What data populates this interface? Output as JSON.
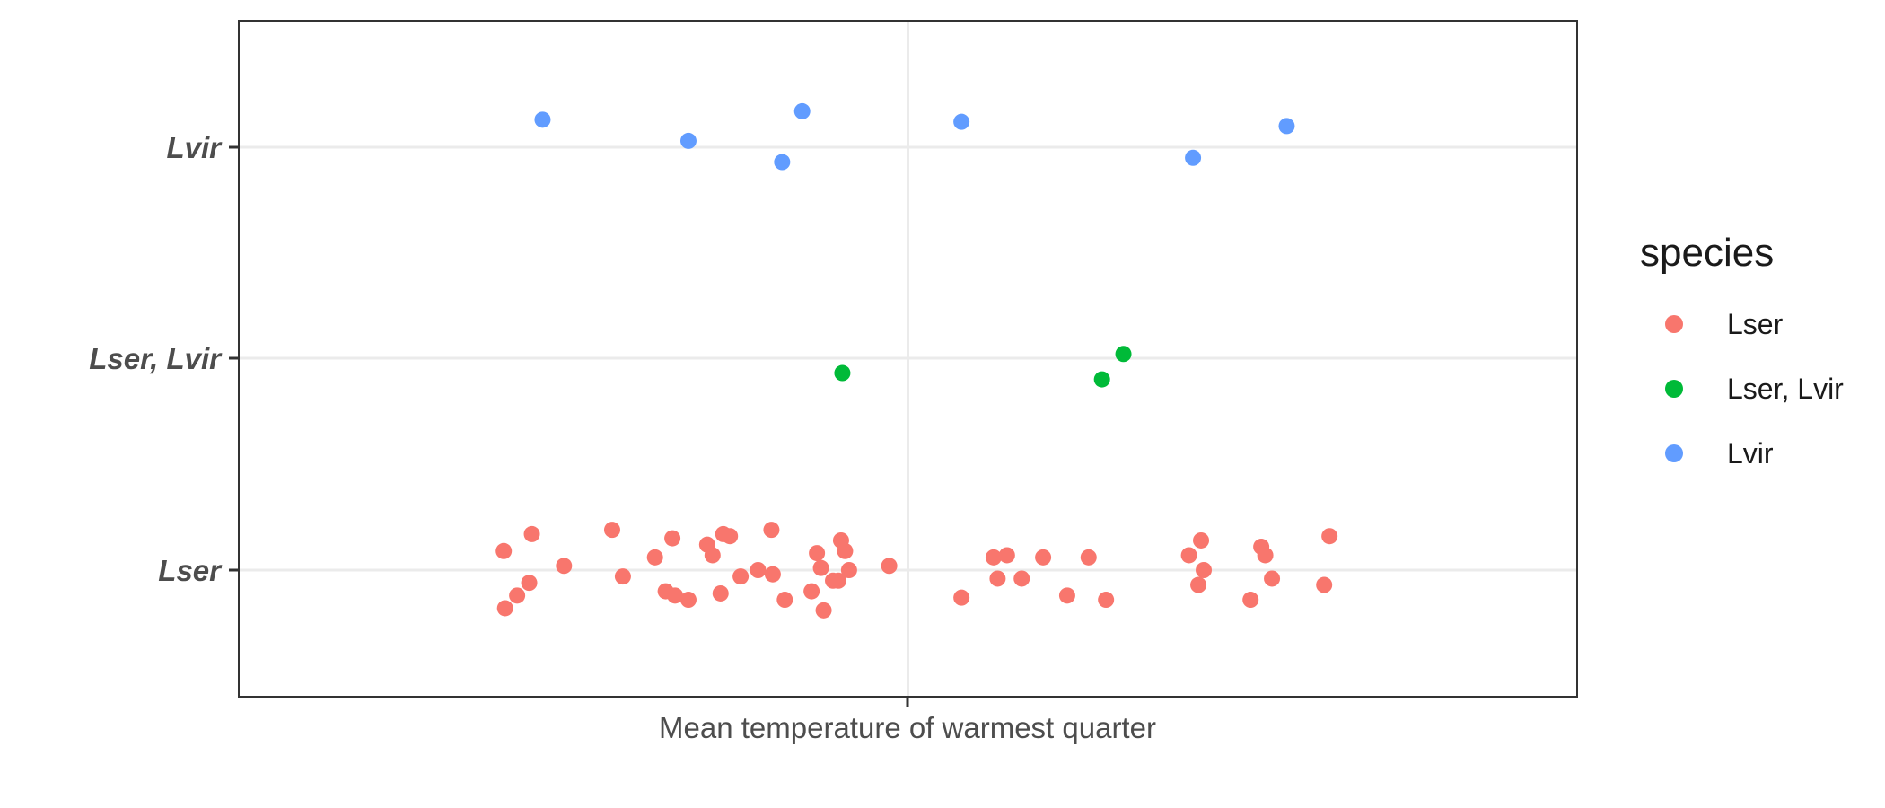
{
  "chart_data": {
    "type": "scatter",
    "title": "",
    "xlabel": "Mean temperature of warmest quarter",
    "ylabel": "",
    "categories": [
      "Lser",
      "Lser, Lvir",
      "Lvir"
    ],
    "xlim": [
      0,
      1
    ],
    "grid": true,
    "legend": {
      "title": "species",
      "position": "right",
      "entries": [
        {
          "label": "Lser",
          "color": "#F8766D"
        },
        {
          "label": "Lser, Lvir",
          "color": "#00BA38"
        },
        {
          "label": "Lvir",
          "color": "#619CFF"
        }
      ]
    },
    "series": [
      {
        "name": "Lser",
        "color": "#F8766D",
        "points": [
          {
            "x": 0.198,
            "y": 0.09
          },
          {
            "x": 0.219,
            "y": 0.17
          },
          {
            "x": 0.243,
            "y": 0.02
          },
          {
            "x": 0.208,
            "y": -0.12
          },
          {
            "x": 0.217,
            "y": -0.06
          },
          {
            "x": 0.199,
            "y": -0.18
          },
          {
            "x": 0.279,
            "y": 0.19
          },
          {
            "x": 0.287,
            "y": -0.03
          },
          {
            "x": 0.311,
            "y": 0.06
          },
          {
            "x": 0.324,
            "y": 0.15
          },
          {
            "x": 0.319,
            "y": -0.1
          },
          {
            "x": 0.326,
            "y": -0.12
          },
          {
            "x": 0.336,
            "y": -0.14
          },
          {
            "x": 0.35,
            "y": 0.12
          },
          {
            "x": 0.354,
            "y": 0.07
          },
          {
            "x": 0.362,
            "y": 0.17
          },
          {
            "x": 0.367,
            "y": 0.16
          },
          {
            "x": 0.36,
            "y": -0.11
          },
          {
            "x": 0.375,
            "y": -0.03
          },
          {
            "x": 0.388,
            "y": 0.0
          },
          {
            "x": 0.399,
            "y": -0.02
          },
          {
            "x": 0.398,
            "y": 0.19
          },
          {
            "x": 0.408,
            "y": -0.14
          },
          {
            "x": 0.428,
            "y": -0.1
          },
          {
            "x": 0.432,
            "y": 0.08
          },
          {
            "x": 0.435,
            "y": 0.01
          },
          {
            "x": 0.437,
            "y": -0.19
          },
          {
            "x": 0.444,
            "y": -0.05
          },
          {
            "x": 0.448,
            "y": -0.05
          },
          {
            "x": 0.45,
            "y": 0.14
          },
          {
            "x": 0.453,
            "y": 0.09
          },
          {
            "x": 0.456,
            "y": 0.0
          },
          {
            "x": 0.486,
            "y": 0.02
          },
          {
            "x": 0.54,
            "y": -0.13
          },
          {
            "x": 0.564,
            "y": 0.06
          },
          {
            "x": 0.574,
            "y": 0.07
          },
          {
            "x": 0.567,
            "y": -0.04
          },
          {
            "x": 0.585,
            "y": -0.04
          },
          {
            "x": 0.601,
            "y": 0.06
          },
          {
            "x": 0.619,
            "y": -0.12
          },
          {
            "x": 0.635,
            "y": 0.06
          },
          {
            "x": 0.648,
            "y": -0.14
          },
          {
            "x": 0.71,
            "y": 0.07
          },
          {
            "x": 0.719,
            "y": 0.14
          },
          {
            "x": 0.721,
            "y": 0.0
          },
          {
            "x": 0.717,
            "y": -0.07
          },
          {
            "x": 0.756,
            "y": -0.14
          },
          {
            "x": 0.764,
            "y": 0.11
          },
          {
            "x": 0.767,
            "y": 0.07
          },
          {
            "x": 0.772,
            "y": -0.04
          },
          {
            "x": 0.811,
            "y": -0.07
          },
          {
            "x": 0.815,
            "y": 0.16
          }
        ]
      },
      {
        "name": "Lser, Lvir",
        "color": "#00BA38",
        "points": [
          {
            "x": 0.451,
            "y": -0.07
          },
          {
            "x": 0.645,
            "y": -0.1
          },
          {
            "x": 0.661,
            "y": 0.02
          }
        ]
      },
      {
        "name": "Lvir",
        "color": "#619CFF",
        "points": [
          {
            "x": 0.227,
            "y": 0.13
          },
          {
            "x": 0.336,
            "y": 0.03
          },
          {
            "x": 0.406,
            "y": -0.07
          },
          {
            "x": 0.421,
            "y": 0.17
          },
          {
            "x": 0.54,
            "y": 0.12
          },
          {
            "x": 0.713,
            "y": -0.05
          },
          {
            "x": 0.783,
            "y": 0.1
          }
        ]
      }
    ]
  }
}
